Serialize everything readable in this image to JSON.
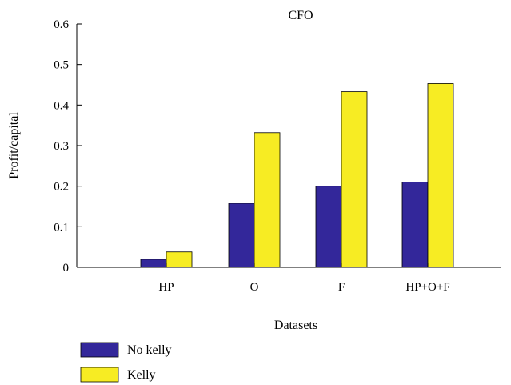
{
  "chart_data": {
    "type": "bar",
    "title": "CFO",
    "xlabel": "Datasets",
    "ylabel": "Profit/capital",
    "categories": [
      "HP",
      "O",
      "F",
      "HP+O+F"
    ],
    "series": [
      {
        "name": "No kelly",
        "color": "#33279a",
        "values": [
          0.02,
          0.158,
          0.2,
          0.21
        ]
      },
      {
        "name": "Kelly",
        "color": "#f7ec23",
        "values": [
          0.038,
          0.332,
          0.433,
          0.453
        ]
      }
    ],
    "ylim": [
      0,
      0.6
    ],
    "yticks": [
      "0",
      "0.1",
      "0.2",
      "0.3",
      "0.4",
      "0.5",
      "0.6"
    ],
    "grid": false,
    "legend": "bottom-left"
  }
}
